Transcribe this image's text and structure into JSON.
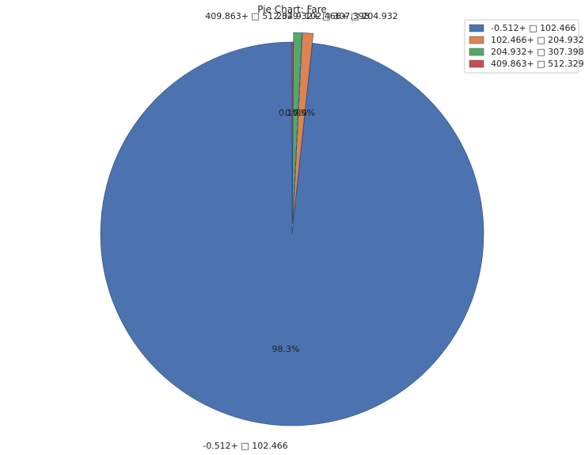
{
  "chart_data": {
    "type": "pie",
    "title": "Pie Chart: Fare",
    "categories": [
      "-0.512+ □ 102.466",
      "102.466+ □ 204.932",
      "204.932+ □ 307.398",
      "409.863+ □ 512.329"
    ],
    "values": [
      98.3,
      0.9,
      0.7,
      0.1
    ],
    "value_labels": [
      "98.3%",
      "0.9%",
      "0.7%",
      "0.1%"
    ],
    "colors": [
      "#4c72b0",
      "#dd8452",
      "#55a868",
      "#c44e52"
    ],
    "start_angle_deg": 90,
    "direction": "counterclockwise",
    "explode": true,
    "legend": {
      "position": "top-right",
      "entries": [
        "-0.512+ □ 102.466",
        "102.466+ □ 204.932",
        "204.932+ □ 307.398",
        "409.863+ □ 512.329"
      ]
    }
  }
}
